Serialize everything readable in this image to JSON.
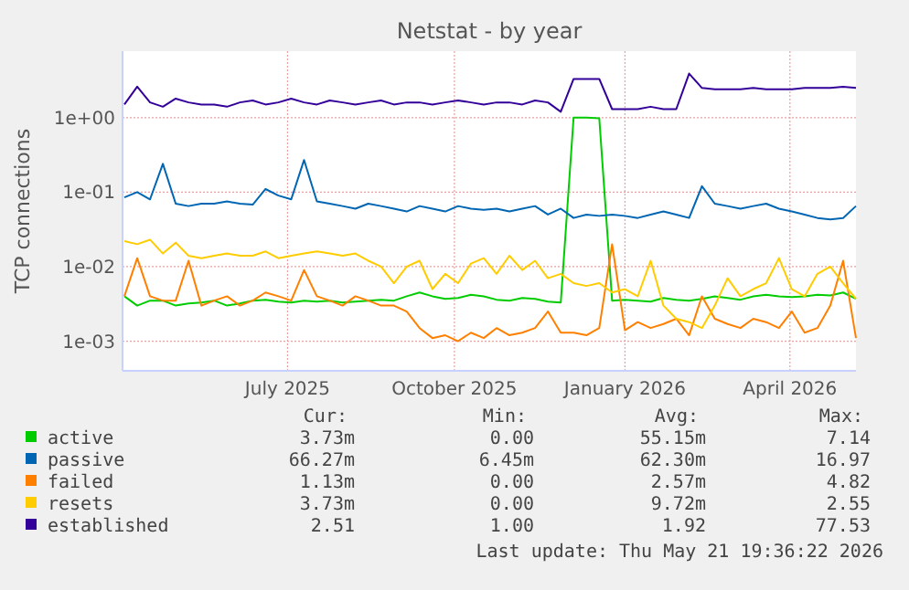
{
  "chart_data": {
    "type": "line",
    "title": "Netstat - by year",
    "ylabel": "TCP connections",
    "log": true,
    "grid": true,
    "legend": "bottom",
    "xlim": [
      "2025-04-16",
      "2026-05-21"
    ],
    "xticks": [
      {
        "value": "2025-07-15",
        "label": "July 2025"
      },
      {
        "value": "2025-10-14",
        "label": "October 2025"
      },
      {
        "value": "2026-01-15",
        "label": "January 2026"
      },
      {
        "value": "2026-04-15",
        "label": "April 2026"
      }
    ],
    "ylim": [
      0.0004,
      7.8
    ],
    "yticks": [
      {
        "value": 0.001,
        "label": "1e-03"
      },
      {
        "value": 0.01,
        "label": "1e-02"
      },
      {
        "value": 0.1,
        "label": "1e-01"
      },
      {
        "value": 1,
        "label": "1e+00"
      }
    ],
    "x": [
      "2025-04-17",
      "2025-04-24",
      "2025-05-01",
      "2025-05-08",
      "2025-05-15",
      "2025-05-22",
      "2025-05-29",
      "2025-06-05",
      "2025-06-12",
      "2025-06-19",
      "2025-06-26",
      "2025-07-03",
      "2025-07-10",
      "2025-07-17",
      "2025-07-24",
      "2025-07-31",
      "2025-08-07",
      "2025-08-14",
      "2025-08-21",
      "2025-08-28",
      "2025-09-04",
      "2025-09-11",
      "2025-09-18",
      "2025-09-25",
      "2025-10-02",
      "2025-10-09",
      "2025-10-16",
      "2025-10-23",
      "2025-10-30",
      "2025-11-06",
      "2025-11-13",
      "2025-11-20",
      "2025-11-27",
      "2025-12-04",
      "2025-12-11",
      "2025-12-18",
      "2025-12-25",
      "2026-01-01",
      "2026-01-08",
      "2026-01-15",
      "2026-01-22",
      "2026-01-29",
      "2026-02-05",
      "2026-02-12",
      "2026-02-19",
      "2026-02-26",
      "2026-03-05",
      "2026-03-12",
      "2026-03-19",
      "2026-03-26",
      "2026-04-02",
      "2026-04-09",
      "2026-04-16",
      "2026-04-23",
      "2026-04-30",
      "2026-05-07",
      "2026-05-14",
      "2026-05-21"
    ],
    "series": [
      {
        "name": "active",
        "color": "#00cc00",
        "values": [
          0.004,
          0.003,
          0.0035,
          0.0035,
          0.003,
          0.0032,
          0.0033,
          0.0035,
          0.003,
          0.0032,
          0.0035,
          0.0036,
          0.0034,
          0.0033,
          0.0035,
          0.0034,
          0.0035,
          0.0033,
          0.0034,
          0.0035,
          0.0036,
          0.0035,
          0.004,
          0.0045,
          0.004,
          0.0037,
          0.0038,
          0.0042,
          0.004,
          0.0036,
          0.0035,
          0.0038,
          0.0037,
          0.0034,
          0.0033,
          1.0,
          1.0,
          0.98,
          0.0035,
          0.0036,
          0.0035,
          0.0034,
          0.0038,
          0.0036,
          0.0035,
          0.0037,
          0.004,
          0.0038,
          0.0036,
          0.004,
          0.0042,
          0.004,
          0.0039,
          0.004,
          0.0042,
          0.0041,
          0.0045,
          0.0037
        ]
      },
      {
        "name": "passive",
        "color": "#0066b3",
        "values": [
          0.085,
          0.1,
          0.08,
          0.24,
          0.07,
          0.065,
          0.07,
          0.07,
          0.075,
          0.07,
          0.068,
          0.11,
          0.09,
          0.08,
          0.27,
          0.075,
          0.07,
          0.065,
          0.06,
          0.07,
          0.065,
          0.06,
          0.055,
          0.065,
          0.06,
          0.055,
          0.065,
          0.06,
          0.058,
          0.06,
          0.055,
          0.06,
          0.065,
          0.05,
          0.06,
          0.045,
          0.05,
          0.048,
          0.05,
          0.048,
          0.045,
          0.05,
          0.055,
          0.05,
          0.045,
          0.12,
          0.07,
          0.065,
          0.06,
          0.065,
          0.07,
          0.06,
          0.055,
          0.05,
          0.045,
          0.043,
          0.045,
          0.065
        ]
      },
      {
        "name": "failed",
        "color": "#ff8000",
        "values": [
          0.004,
          0.013,
          0.004,
          0.0035,
          0.0035,
          0.012,
          0.003,
          0.0035,
          0.004,
          0.003,
          0.0035,
          0.0045,
          0.004,
          0.0035,
          0.009,
          0.004,
          0.0035,
          0.003,
          0.004,
          0.0035,
          0.003,
          0.003,
          0.0025,
          0.0015,
          0.0011,
          0.0012,
          0.001,
          0.0013,
          0.0011,
          0.0015,
          0.0012,
          0.0013,
          0.0015,
          0.0025,
          0.0013,
          0.0013,
          0.0012,
          0.0015,
          0.02,
          0.0014,
          0.0018,
          0.0015,
          0.0017,
          0.002,
          0.0012,
          0.004,
          0.002,
          0.0017,
          0.0015,
          0.002,
          0.0018,
          0.0015,
          0.0025,
          0.0013,
          0.0015,
          0.003,
          0.012,
          0.0011
        ]
      },
      {
        "name": "resets",
        "color": "#ffcc00",
        "values": [
          0.022,
          0.02,
          0.023,
          0.015,
          0.021,
          0.014,
          0.013,
          0.014,
          0.015,
          0.014,
          0.014,
          0.016,
          0.013,
          0.014,
          0.015,
          0.016,
          0.015,
          0.014,
          0.015,
          0.012,
          0.01,
          0.006,
          0.01,
          0.012,
          0.005,
          0.008,
          0.006,
          0.011,
          0.013,
          0.008,
          0.014,
          0.009,
          0.012,
          0.007,
          0.008,
          0.006,
          0.0055,
          0.006,
          0.0045,
          0.005,
          0.004,
          0.012,
          0.003,
          0.002,
          0.0018,
          0.0015,
          0.003,
          0.007,
          0.004,
          0.005,
          0.006,
          0.013,
          0.005,
          0.004,
          0.008,
          0.01,
          0.006,
          0.0037
        ]
      },
      {
        "name": "established",
        "color": "#330099",
        "values": [
          1.5,
          2.6,
          1.6,
          1.4,
          1.8,
          1.6,
          1.5,
          1.5,
          1.4,
          1.6,
          1.7,
          1.5,
          1.6,
          1.8,
          1.6,
          1.5,
          1.7,
          1.6,
          1.5,
          1.6,
          1.7,
          1.5,
          1.6,
          1.6,
          1.5,
          1.6,
          1.7,
          1.6,
          1.5,
          1.6,
          1.6,
          1.5,
          1.7,
          1.6,
          1.2,
          3.3,
          3.3,
          3.3,
          1.3,
          1.3,
          1.3,
          1.4,
          1.3,
          1.3,
          3.9,
          2.5,
          2.4,
          2.4,
          2.4,
          2.5,
          2.4,
          2.4,
          2.4,
          2.5,
          2.5,
          2.5,
          2.6,
          2.5
        ]
      }
    ],
    "annotations": [
      "Cur:",
      "Min:",
      "Avg:",
      "Max:",
      "3.73m",
      "0.00",
      "55.15m",
      "7.14",
      "66.27m",
      "6.45m",
      "62.30m",
      "16.97",
      "1.13m",
      "0.00",
      "2.57m",
      "4.82",
      "3.73m",
      "0.00",
      "9.72m",
      "2.55",
      "2.51",
      "1.00",
      "1.92",
      "77.53",
      "Last update: Thu May 21 19:36:22 2026"
    ]
  }
}
